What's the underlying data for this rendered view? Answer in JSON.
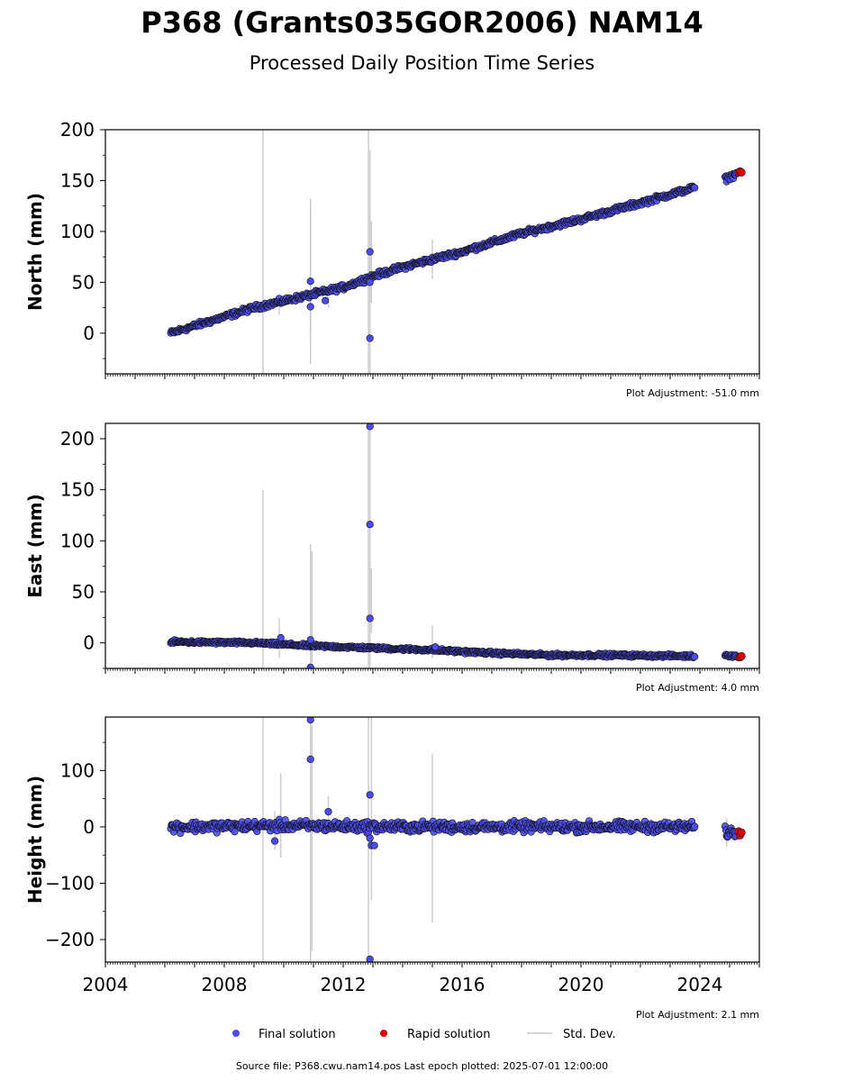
{
  "title": "P368 (Grants035GOR2006) NAM14",
  "subtitle": "Processed Daily Position Time Series",
  "source": "Source file: P368.cwu.nam14.pos  Last epoch plotted: 2025-07-01 12:00:00",
  "colors": {
    "final": "#4b4bee",
    "rapid": "#e00000",
    "stddev": "#c8c8c8",
    "edge": "#111111"
  },
  "legend": [
    {
      "kind": "final",
      "label": "Final solution"
    },
    {
      "kind": "rapid",
      "label": "Rapid solution"
    },
    {
      "kind": "stddev",
      "label": "Std. Dev."
    }
  ],
  "chart_data": [
    {
      "type": "scatter",
      "ylabel": "North (mm)",
      "adjustment": "Plot Adjustment: -51.0 mm",
      "xlim": [
        2004,
        2026
      ],
      "ylim": [
        -40,
        200
      ],
      "yticks": [
        0,
        50,
        100,
        150,
        200
      ],
      "ytick_labels": [
        "0",
        "50",
        "100",
        "150",
        "200"
      ],
      "show_xtick_labels": false,
      "final": {
        "trend": [
          [
            2006.2,
            0
          ],
          [
            2009.0,
            25
          ],
          [
            2012.0,
            45
          ],
          [
            2013.0,
            56
          ],
          [
            2014.0,
            65
          ],
          [
            2016.0,
            80
          ],
          [
            2018.0,
            98
          ],
          [
            2020.0,
            112
          ],
          [
            2022.0,
            128
          ],
          [
            2023.8,
            143
          ],
          [
            2024.9,
            152
          ],
          [
            2025.25,
            157
          ]
        ],
        "gap": [
          2023.85,
          2024.85
        ],
        "noise": 2.5,
        "outliers": [
          [
            2010.9,
            51
          ],
          [
            2010.9,
            26
          ],
          [
            2011.4,
            32
          ],
          [
            2012.9,
            80
          ],
          [
            2012.9,
            -5
          ],
          [
            2012.9,
            50
          ]
        ]
      },
      "rapid": {
        "points": [
          [
            2025.3,
            158
          ],
          [
            2025.35,
            159
          ],
          [
            2025.4,
            158
          ]
        ]
      },
      "stddev": [
        [
          2009.3,
          -40,
          200
        ],
        [
          2010.9,
          -30,
          132
        ],
        [
          2010.9,
          0,
          125
        ],
        [
          2012.85,
          -40,
          200
        ],
        [
          2012.9,
          -40,
          180
        ],
        [
          2012.95,
          30,
          110
        ],
        [
          2015.0,
          53,
          92
        ],
        [
          2009.85,
          18,
          38
        ],
        [
          2011.5,
          25,
          40
        ]
      ]
    },
    {
      "type": "scatter",
      "ylabel": "East (mm)",
      "adjustment": "Plot Adjustment: 4.0 mm",
      "xlim": [
        2004,
        2026
      ],
      "ylim": [
        -25,
        215
      ],
      "yticks": [
        0,
        50,
        100,
        150,
        200
      ],
      "ytick_labels": [
        "0",
        "50",
        "100",
        "150",
        "200"
      ],
      "show_xtick_labels": false,
      "final": {
        "trend": [
          [
            2006.2,
            1
          ],
          [
            2009.0,
            0
          ],
          [
            2011.0,
            -3
          ],
          [
            2013.0,
            -5
          ],
          [
            2015.0,
            -7
          ],
          [
            2017.0,
            -10
          ],
          [
            2019.0,
            -12
          ],
          [
            2021.0,
            -12
          ],
          [
            2023.8,
            -13
          ],
          [
            2024.9,
            -12
          ],
          [
            2025.25,
            -13
          ]
        ],
        "gap": [
          2023.85,
          2024.85
        ],
        "noise": 1.5,
        "outliers": [
          [
            2009.9,
            5
          ],
          [
            2010.9,
            3
          ],
          [
            2010.9,
            -24
          ],
          [
            2012.9,
            212
          ],
          [
            2012.9,
            116
          ],
          [
            2012.9,
            24
          ],
          [
            2015.1,
            -4
          ]
        ]
      },
      "rapid": {
        "points": [
          [
            2025.3,
            -14
          ],
          [
            2025.35,
            -14
          ],
          [
            2025.4,
            -13
          ]
        ]
      },
      "stddev": [
        [
          2009.3,
          -25,
          150
        ],
        [
          2009.85,
          -15,
          24
        ],
        [
          2010.9,
          -25,
          97
        ],
        [
          2010.95,
          -20,
          90
        ],
        [
          2012.85,
          -25,
          215
        ],
        [
          2012.9,
          -25,
          215
        ],
        [
          2012.95,
          10,
          73
        ],
        [
          2015.0,
          -15,
          17
        ]
      ]
    },
    {
      "type": "scatter",
      "ylabel": "Height (mm)",
      "adjustment": "Plot Adjustment: 2.1 mm",
      "xlim": [
        2004,
        2026
      ],
      "ylim": [
        -240,
        195
      ],
      "yticks": [
        -200,
        -100,
        0,
        100
      ],
      "ytick_labels": [
        "−200",
        "−100",
        "0",
        "100"
      ],
      "show_xtick_labels": true,
      "xticks": [
        2004,
        2008,
        2012,
        2016,
        2020,
        2024
      ],
      "xtick_labels": [
        "2004",
        "2008",
        "2012",
        "2016",
        "2020",
        "2024"
      ],
      "final": {
        "trend": [
          [
            2006.2,
            0
          ],
          [
            2010.0,
            2
          ],
          [
            2014.0,
            0
          ],
          [
            2018.0,
            0
          ],
          [
            2021.0,
            0
          ],
          [
            2023.8,
            0
          ],
          [
            2024.9,
            -10
          ],
          [
            2025.25,
            -10
          ]
        ],
        "gap": [
          2023.85,
          2024.85
        ],
        "noise": 9,
        "outliers": [
          [
            2009.7,
            -25
          ],
          [
            2010.9,
            190
          ],
          [
            2010.9,
            120
          ],
          [
            2011.5,
            27
          ],
          [
            2012.9,
            57
          ],
          [
            2012.9,
            -20
          ],
          [
            2012.95,
            -33
          ],
          [
            2013.05,
            -33
          ],
          [
            2012.9,
            -235
          ]
        ]
      },
      "rapid": {
        "points": [
          [
            2025.3,
            -8
          ],
          [
            2025.35,
            -15
          ],
          [
            2025.4,
            -10
          ]
        ]
      },
      "stddev": [
        [
          2009.3,
          -240,
          195
        ],
        [
          2009.7,
          -40,
          28
        ],
        [
          2009.9,
          -55,
          95
        ],
        [
          2010.9,
          -240,
          195
        ],
        [
          2010.95,
          -220,
          180
        ],
        [
          2011.5,
          5,
          55
        ],
        [
          2012.85,
          -240,
          195
        ],
        [
          2012.95,
          -130,
          195
        ],
        [
          2015.0,
          -170,
          130
        ],
        [
          2024.9,
          -35,
          15
        ]
      ]
    }
  ]
}
